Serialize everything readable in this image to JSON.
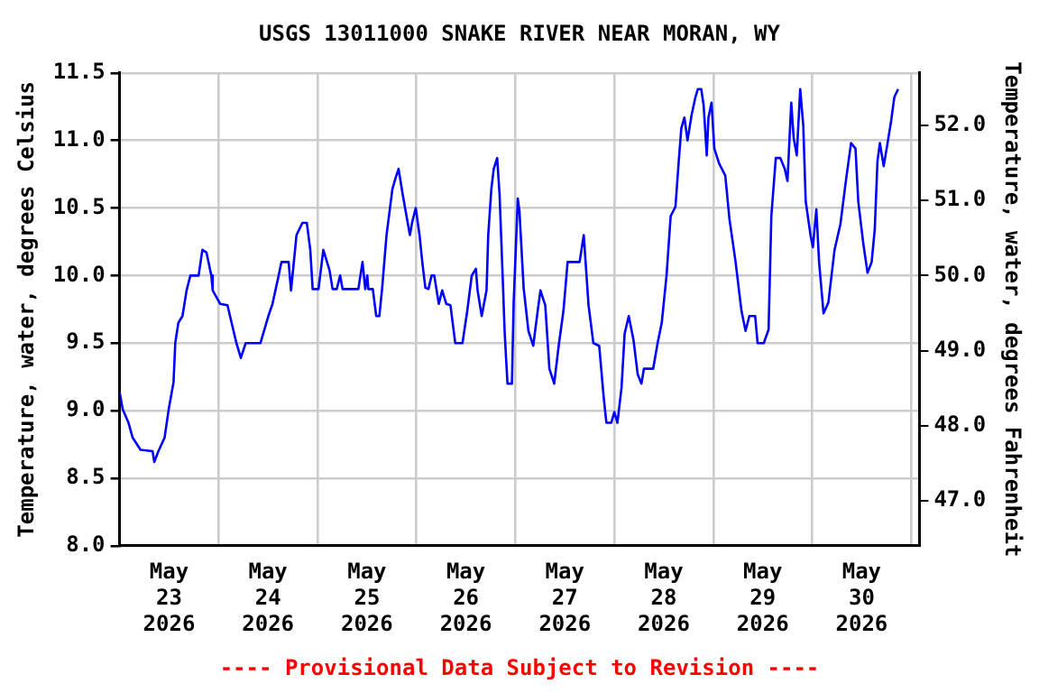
{
  "chart_data": {
    "type": "line",
    "title": "USGS 13011000 SNAKE RIVER NEAR MORAN, WY",
    "ylabel": "Temperature, water, degrees Celsius",
    "y2label": "Temperature, water, degrees Fahrenheit",
    "annotations": [
      "---- Provisional Data Subject to Revision ----"
    ],
    "x": [
      "2026-05-23T00:00",
      "2026-05-23T00:45",
      "2026-05-23T02:10",
      "2026-05-23T03:10",
      "2026-05-23T05:05",
      "2026-05-23T08:00",
      "2026-05-23T08:25",
      "2026-05-23T09:25",
      "2026-05-23T10:55",
      "2026-05-23T11:55",
      "2026-05-23T13:05",
      "2026-05-23T13:30",
      "2026-05-23T14:15",
      "2026-05-23T15:15",
      "2026-05-23T16:15",
      "2026-05-23T17:10",
      "2026-05-23T19:10",
      "2026-05-23T20:05",
      "2026-05-23T21:05",
      "2026-05-23T22:15",
      "2026-05-23T22:35",
      "2026-05-24T00:25",
      "2026-05-24T02:10",
      "2026-05-24T04:20",
      "2026-05-24T05:25",
      "2026-05-24T06:35",
      "2026-05-24T10:10",
      "2026-05-24T12:05",
      "2026-05-24T13:05",
      "2026-05-24T14:35",
      "2026-05-24T15:15",
      "2026-05-24T17:00",
      "2026-05-24T17:35",
      "2026-05-24T18:55",
      "2026-05-24T20:20",
      "2026-05-24T21:25",
      "2026-05-24T22:15",
      "2026-05-24T22:50",
      "2026-05-25T00:15",
      "2026-05-25T01:25",
      "2026-05-25T02:55",
      "2026-05-25T03:40",
      "2026-05-25T04:40",
      "2026-05-25T05:30",
      "2026-05-25T06:05",
      "2026-05-25T09:55",
      "2026-05-25T10:55",
      "2026-05-25T11:35",
      "2026-05-25T12:05",
      "2026-05-25T12:20",
      "2026-05-25T13:25",
      "2026-05-25T14:15",
      "2026-05-25T15:00",
      "2026-05-25T15:40",
      "2026-05-25T16:45",
      "2026-05-25T18:10",
      "2026-05-25T18:55",
      "2026-05-25T19:40",
      "2026-05-25T20:40",
      "2026-05-25T21:50",
      "2026-05-25T22:25",
      "2026-05-25T23:00",
      "2026-05-25T23:50",
      "2026-05-26T00:45",
      "2026-05-26T01:25",
      "2026-05-26T02:10",
      "2026-05-26T02:55",
      "2026-05-26T03:40",
      "2026-05-26T04:20",
      "2026-05-26T05:25",
      "2026-05-26T06:15",
      "2026-05-26T07:15",
      "2026-05-26T08:15",
      "2026-05-26T09:25",
      "2026-05-26T11:10",
      "2026-05-26T12:20",
      "2026-05-26T13:25",
      "2026-05-26T14:25",
      "2026-05-26T14:50",
      "2026-05-26T15:50",
      "2026-05-26T17:00",
      "2026-05-26T17:25",
      "2026-05-26T18:10",
      "2026-05-26T18:45",
      "2026-05-26T19:35",
      "2026-05-26T20:10",
      "2026-05-26T20:50",
      "2026-05-26T21:25",
      "2026-05-26T22:05",
      "2026-05-26T23:10",
      "2026-05-26T23:35",
      "2026-05-27T00:35",
      "2026-05-27T01:00",
      "2026-05-27T02:00",
      "2026-05-27T03:10",
      "2026-05-27T04:20",
      "2026-05-27T05:25",
      "2026-05-27T06:05",
      "2026-05-27T07:15",
      "2026-05-27T08:15",
      "2026-05-27T09:25",
      "2026-05-27T10:30",
      "2026-05-27T11:40",
      "2026-05-27T12:40",
      "2026-05-27T15:35",
      "2026-05-27T16:35",
      "2026-05-27T17:45",
      "2026-05-27T18:55",
      "2026-05-27T20:20",
      "2026-05-27T21:25",
      "2026-05-27T22:05",
      "2026-05-27T23:15",
      "2026-05-28T00:00",
      "2026-05-28T00:45",
      "2026-05-28T01:45",
      "2026-05-28T02:30",
      "2026-05-28T03:30",
      "2026-05-28T04:40",
      "2026-05-28T05:40",
      "2026-05-28T06:35",
      "2026-05-28T07:10",
      "2026-05-28T09:25",
      "2026-05-28T10:30",
      "2026-05-28T11:30",
      "2026-05-28T12:40",
      "2026-05-28T13:40",
      "2026-05-28T14:50",
      "2026-05-28T15:35",
      "2026-05-28T16:15",
      "2026-05-28T17:00",
      "2026-05-28T17:45",
      "2026-05-28T18:45",
      "2026-05-28T19:40",
      "2026-05-28T20:15",
      "2026-05-28T21:05",
      "2026-05-28T21:40",
      "2026-05-28T22:25",
      "2026-05-28T22:50",
      "2026-05-28T23:35",
      "2026-05-29T00:15",
      "2026-05-29T01:25",
      "2026-05-29T02:55",
      "2026-05-29T03:55",
      "2026-05-29T05:25",
      "2026-05-29T06:50",
      "2026-05-29T07:50",
      "2026-05-29T08:45",
      "2026-05-29T10:10",
      "2026-05-29T10:45",
      "2026-05-29T12:15",
      "2026-05-29T13:25",
      "2026-05-29T14:05",
      "2026-05-29T15:10",
      "2026-05-29T16:15",
      "2026-05-29T17:20",
      "2026-05-29T18:00",
      "2026-05-29T18:55",
      "2026-05-29T19:30",
      "2026-05-29T20:15",
      "2026-05-29T21:05",
      "2026-05-29T21:50",
      "2026-05-29T22:25",
      "2026-05-29T23:35",
      "2026-05-30T00:10",
      "2026-05-30T01:00",
      "2026-05-30T01:40",
      "2026-05-30T02:45",
      "2026-05-30T03:55",
      "2026-05-30T05:25",
      "2026-05-30T06:50",
      "2026-05-30T08:15",
      "2026-05-30T09:25",
      "2026-05-30T10:30",
      "2026-05-30T11:10",
      "2026-05-30T12:20",
      "2026-05-30T13:25",
      "2026-05-30T14:25",
      "2026-05-30T15:10",
      "2026-05-30T15:50",
      "2026-05-30T16:25",
      "2026-05-30T17:20",
      "2026-05-30T18:10",
      "2026-05-30T19:10",
      "2026-05-30T19:55",
      "2026-05-30T20:50"
    ],
    "series": [
      {
        "color": "#0000ff",
        "values": [
          9.14,
          9.01,
          8.91,
          8.8,
          8.71,
          8.7,
          8.62,
          8.7,
          8.8,
          9.01,
          9.21,
          9.5,
          9.65,
          9.7,
          9.89,
          10.0,
          10.0,
          10.19,
          10.17,
          10.0,
          9.89,
          9.79,
          9.78,
          9.5,
          9.39,
          9.5,
          9.5,
          9.7,
          9.79,
          10.0,
          10.1,
          10.1,
          9.89,
          10.3,
          10.39,
          10.39,
          10.19,
          9.9,
          9.9,
          10.19,
          10.04,
          9.9,
          9.9,
          10.0,
          9.9,
          9.9,
          10.1,
          9.9,
          10.0,
          9.9,
          9.9,
          9.7,
          9.7,
          9.9,
          10.3,
          10.64,
          10.72,
          10.79,
          10.6,
          10.4,
          10.3,
          10.4,
          10.5,
          10.3,
          10.1,
          9.91,
          9.9,
          10.0,
          10.0,
          9.79,
          9.89,
          9.79,
          9.78,
          9.5,
          9.5,
          9.74,
          10.0,
          10.05,
          9.89,
          9.7,
          9.89,
          10.3,
          10.64,
          10.79,
          10.87,
          10.6,
          10.06,
          9.57,
          9.2,
          9.2,
          9.8,
          10.57,
          10.47,
          9.91,
          9.59,
          9.48,
          9.74,
          9.89,
          9.78,
          9.31,
          9.2,
          9.48,
          9.74,
          10.1,
          10.1,
          10.3,
          9.78,
          9.5,
          9.48,
          9.1,
          8.91,
          8.91,
          8.99,
          8.91,
          9.17,
          9.57,
          9.7,
          9.52,
          9.27,
          9.2,
          9.31,
          9.31,
          9.5,
          9.65,
          10.0,
          10.44,
          10.51,
          10.83,
          11.09,
          11.17,
          11.0,
          11.19,
          11.32,
          11.38,
          11.38,
          11.26,
          10.89,
          11.17,
          11.28,
          10.94,
          10.83,
          10.74,
          10.42,
          10.1,
          9.74,
          9.59,
          9.7,
          9.7,
          9.5,
          9.5,
          9.6,
          10.44,
          10.87,
          10.87,
          10.79,
          10.7,
          11.28,
          11.02,
          10.89,
          11.38,
          11.11,
          10.55,
          10.3,
          10.21,
          10.49,
          10.1,
          9.72,
          9.8,
          10.19,
          10.38,
          10.72,
          10.98,
          10.94,
          10.55,
          10.25,
          10.02,
          10.1,
          10.34,
          10.85,
          10.98,
          10.81,
          10.96,
          11.15,
          11.32,
          11.38
        ]
      }
    ],
    "xlim": [
      "2026-05-23T00:00",
      "2026-05-31T02:00"
    ],
    "xticks": [
      {
        "value": "2026-05-23T12:00",
        "label": "May 23 2026"
      },
      {
        "value": "2026-05-24T00:00",
        "label": null
      },
      {
        "value": "2026-05-24T12:00",
        "label": "May 24 2026"
      },
      {
        "value": "2026-05-25T00:00",
        "label": null
      },
      {
        "value": "2026-05-25T12:00",
        "label": "May 25 2026"
      },
      {
        "value": "2026-05-26T00:00",
        "label": null
      },
      {
        "value": "2026-05-26T12:00",
        "label": "May 26 2026"
      },
      {
        "value": "2026-05-27T00:00",
        "label": null
      },
      {
        "value": "2026-05-27T12:00",
        "label": "May 27 2026"
      },
      {
        "value": "2026-05-28T00:00",
        "label": null
      },
      {
        "value": "2026-05-28T12:00",
        "label": "May 28 2026"
      },
      {
        "value": "2026-05-29T00:00",
        "label": null
      },
      {
        "value": "2026-05-29T12:00",
        "label": "May 29 2026"
      },
      {
        "value": "2026-05-30T00:00",
        "label": null
      },
      {
        "value": "2026-05-30T12:00",
        "label": "May 30 2026"
      },
      {
        "value": "2026-05-31T00:00",
        "label": null
      }
    ],
    "ylim": [
      8.0,
      11.5
    ],
    "yticks": [
      {
        "value": 8,
        "label": "8.0"
      },
      8.5,
      {
        "value": 9,
        "label": "9.0"
      },
      9.5,
      {
        "value": 10,
        "label": "10.0"
      },
      10.5,
      {
        "value": 11,
        "label": "11.0"
      },
      11.5
    ],
    "y2lim": [
      46.4,
      52.7
    ],
    "y2ticks": [
      {
        "value": 47,
        "label": "47.0"
      },
      {
        "value": 48,
        "label": "48.0"
      },
      {
        "value": 49,
        "label": "49.0"
      },
      {
        "value": 50,
        "label": "50.0"
      },
      {
        "value": 51,
        "label": "51.0"
      },
      {
        "value": 52,
        "label": "52.0"
      }
    ],
    "grid": true,
    "legend": false,
    "line_style": "solid",
    "marker": "none"
  }
}
